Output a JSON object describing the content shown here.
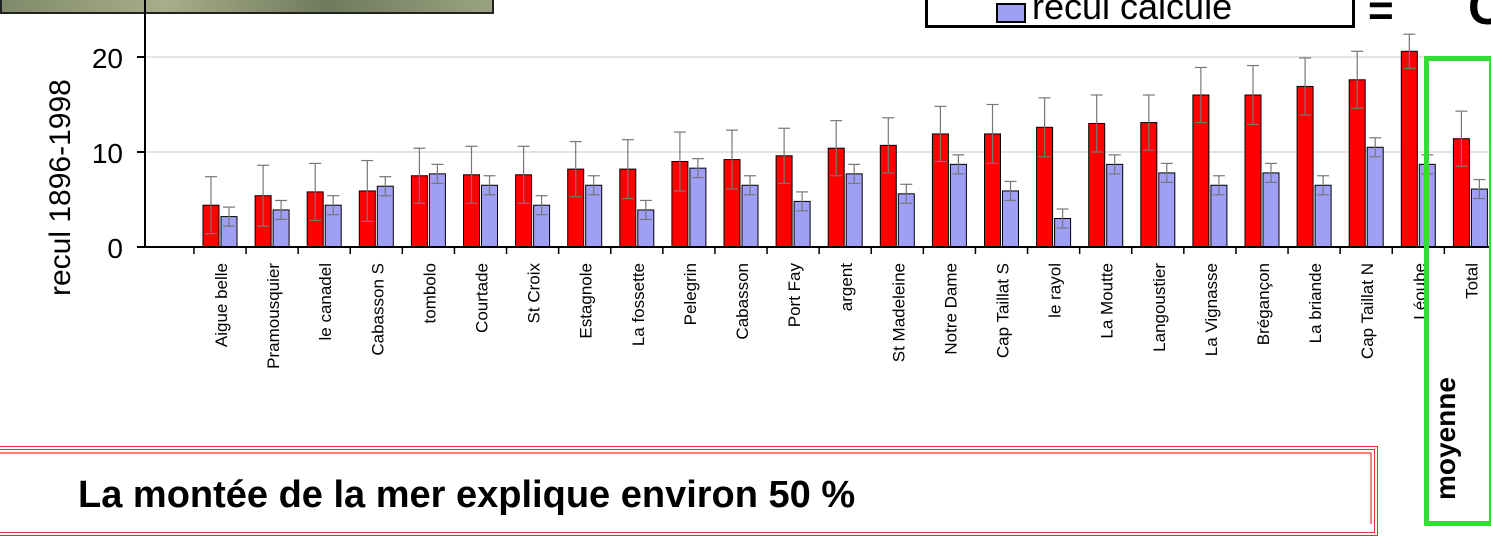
{
  "chart_data": {
    "type": "bar",
    "ylabel": "recul 1896-1998",
    "ylim": [
      0,
      22
    ],
    "yticks": [
      0,
      10,
      20
    ],
    "grid": true,
    "categories": [
      "Aigue belle",
      "Pramousquier",
      "le canadel",
      "Cabasson S",
      "tombolo",
      "Courtade",
      "St Croix",
      "Estagnole",
      "La fossette",
      "Pelegrin",
      "Cabasson",
      "Port Fay",
      "argent",
      "St Madeleine",
      "Notre Dame",
      "Cap Taillat S",
      "le rayol",
      "La Moutte",
      "Langoustier",
      "La Vignasse",
      "Brégançon",
      "La briande",
      "Cap Taillat N",
      "Léoube",
      "Total"
    ],
    "series": [
      {
        "name": "",
        "color": "#ff0000",
        "values": [
          4.4,
          5.4,
          5.8,
          5.9,
          7.5,
          7.6,
          7.6,
          8.2,
          8.2,
          9.0,
          9.2,
          9.6,
          10.4,
          10.7,
          11.9,
          11.9,
          12.6,
          13.0,
          13.1,
          16.0,
          16.0,
          16.9,
          17.6,
          20.6,
          11.4
        ],
        "errors": [
          3.0,
          3.2,
          3.0,
          3.2,
          2.9,
          3.0,
          3.0,
          2.9,
          3.1,
          3.1,
          3.1,
          2.9,
          2.9,
          2.9,
          2.9,
          3.1,
          3.1,
          3.0,
          2.9,
          2.9,
          3.1,
          3.0,
          3.0,
          1.8,
          2.9
        ]
      },
      {
        "name": "recul calculé",
        "color": "#9f9ff5",
        "values": [
          3.2,
          3.9,
          4.4,
          6.4,
          7.7,
          6.5,
          4.4,
          6.5,
          3.9,
          8.3,
          6.5,
          4.8,
          7.7,
          5.6,
          8.7,
          5.9,
          3.0,
          8.7,
          7.8,
          6.5,
          7.8,
          6.5,
          10.5,
          8.7,
          6.1
        ],
        "errors": [
          1.0,
          1.0,
          1.0,
          1.0,
          1.0,
          1.0,
          1.0,
          1.0,
          1.0,
          1.0,
          1.0,
          1.0,
          1.0,
          1.0,
          1.0,
          1.0,
          1.0,
          1.0,
          1.0,
          1.0,
          1.0,
          1.0,
          1.0,
          1.0,
          1.0
        ]
      }
    ]
  },
  "legend": {
    "label": "recul calculé",
    "eq": "=",
    "tail": "C"
  },
  "highlight_label": "moyenne",
  "bottom_text": "La montée de la mer explique environ  50 %"
}
